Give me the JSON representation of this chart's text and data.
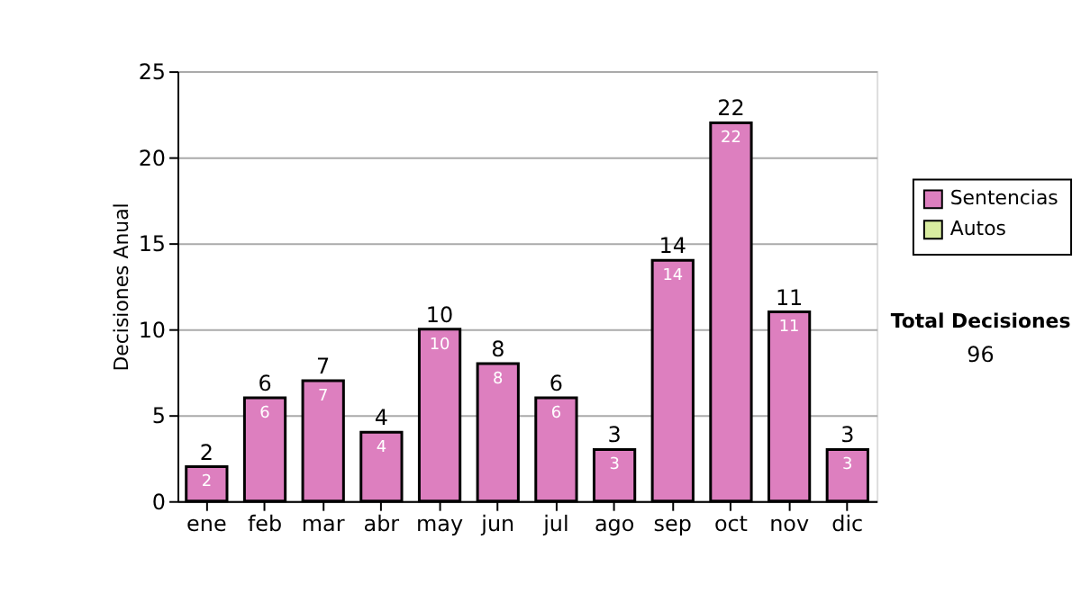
{
  "chart_data": {
    "type": "bar",
    "ylabel": "Decisiones Anual",
    "categories": [
      "ene",
      "feb",
      "mar",
      "abr",
      "may",
      "jun",
      "jul",
      "ago",
      "sep",
      "oct",
      "nov",
      "dic"
    ],
    "series": [
      {
        "name": "Sentencias",
        "color": "#dd7fbf",
        "values": [
          2,
          6,
          7,
          4,
          10,
          8,
          6,
          3,
          14,
          22,
          11,
          3
        ]
      },
      {
        "name": "Autos",
        "color": "#d9eca0",
        "values": [
          null,
          null,
          null,
          null,
          null,
          null,
          null,
          null,
          null,
          null,
          null,
          null
        ]
      }
    ],
    "ylim": [
      0,
      25
    ],
    "yticks": [
      0,
      5,
      10,
      15,
      20,
      25
    ],
    "grid": "y",
    "legend": "right",
    "data_labels": true,
    "totals": [
      "2",
      "6",
      "7",
      "4",
      "10",
      "8",
      "6",
      "3",
      "14",
      "22",
      "11",
      "3"
    ],
    "annotations": [
      "Total Decisiones",
      "96"
    ]
  }
}
